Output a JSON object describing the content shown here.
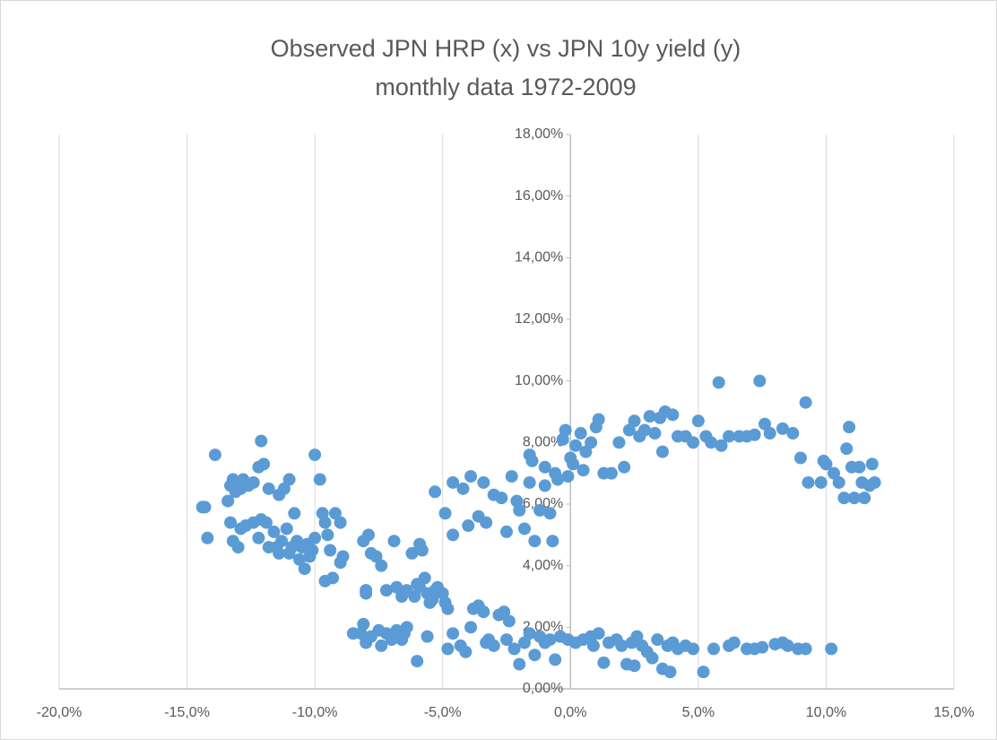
{
  "chart_data": {
    "type": "scatter",
    "title": "Observed JPN HRP (x) vs JPN 10y yield (y)",
    "subtitle": "monthly data 1972-2009",
    "color": "#5b9bd5",
    "grid": true,
    "xlim": [
      -20,
      15
    ],
    "ylim": [
      0,
      18
    ],
    "xticks": [
      {
        "value": -20,
        "label": "-20,0%"
      },
      {
        "value": -15,
        "label": "-15,0%"
      },
      {
        "value": -10,
        "label": "-10,0%"
      },
      {
        "value": -5,
        "label": "-5,0%"
      },
      {
        "value": 0,
        "label": "0,0%"
      },
      {
        "value": 5,
        "label": "5,0%"
      },
      {
        "value": 10,
        "label": "10,0%"
      },
      {
        "value": 15,
        "label": "15,0%"
      }
    ],
    "yticks": [
      {
        "value": 0,
        "label": "0,00%"
      },
      {
        "value": 2,
        "label": "2,00%"
      },
      {
        "value": 4,
        "label": "4,00%"
      },
      {
        "value": 6,
        "label": "6,00%"
      },
      {
        "value": 8,
        "label": "8,00%"
      },
      {
        "value": 10,
        "label": "10,00%"
      },
      {
        "value": 12,
        "label": "12,00%"
      },
      {
        "value": 14,
        "label": "14,00%"
      },
      {
        "value": 16,
        "label": "16,00%"
      },
      {
        "value": 18,
        "label": "18,00%"
      }
    ],
    "x": [
      -14.4,
      -14.3,
      -14.2,
      -13.9,
      -13.4,
      -13.3,
      -13.2,
      -13.1,
      -13.0,
      -12.9,
      -12.8,
      -12.6,
      -12.4,
      -12.2,
      -12.1,
      -12.0,
      -11.8,
      -11.4,
      -11.2,
      -11.0,
      -13.3,
      -13.2,
      -13.0,
      -12.9,
      -12.7,
      -12.4,
      -12.2,
      -12.1,
      -11.9,
      -11.8,
      -11.6,
      -11.4,
      -11.3,
      -11.1,
      -11.0,
      -10.9,
      -10.8,
      -10.6,
      -10.5,
      -10.4,
      -10.3,
      -10.2,
      -10.0,
      -10.0,
      -9.8,
      -9.7,
      -9.6,
      -9.5,
      -9.4,
      -9.3,
      -9.6,
      -9.2,
      -9.0,
      -9.0,
      -8.9,
      -10.7,
      -11.5,
      -10.1,
      -8.1,
      -7.9,
      -7.8,
      -7.6,
      -7.4,
      -8.0,
      -8.0,
      -7.2,
      -6.9,
      -6.8,
      -6.6,
      -6.4,
      -6.2,
      -6.0,
      -5.9,
      -5.8,
      -5.7,
      -5.6,
      -5.4,
      -5.3,
      -5.2,
      -5.0,
      -4.9,
      -4.8,
      -5.5,
      -6.1,
      -5.9,
      -8.5,
      -8.2,
      -8.1,
      -8.0,
      -7.8,
      -7.5,
      -7.4,
      -7.2,
      -7.0,
      -6.8,
      -6.6,
      -6.4,
      -6.5,
      -6.0,
      -5.6,
      -4.8,
      -4.6,
      -4.3,
      -4.1,
      -3.9,
      -3.8,
      -3.6,
      -3.4,
      -3.2,
      -3.0,
      -2.8,
      -2.6,
      -2.4,
      -2.2,
      -2.0,
      -1.8,
      -1.6,
      -1.4,
      -1.2,
      -1.0,
      -0.8,
      -0.6,
      -0.4,
      -0.1,
      0.2,
      0.5,
      0.8,
      1.1,
      1.3,
      1.5,
      1.8,
      2.0,
      2.2,
      2.5,
      2.6,
      2.8,
      3.0,
      3.2,
      3.4,
      3.6,
      3.8,
      3.9,
      4.2,
      4.5,
      4.8,
      5.2,
      5.6,
      6.2,
      6.4,
      6.9,
      7.2,
      7.5,
      8.0,
      8.3,
      8.5,
      8.9,
      9.2,
      10.2,
      -3.3,
      -2.5,
      0.9,
      2.4,
      4.0,
      -5.3,
      -4.9,
      -4.6,
      -4.6,
      -4.2,
      -3.9,
      -4.0,
      -3.6,
      -3.4,
      -3.3,
      -3.0,
      -2.7,
      -2.5,
      -2.3,
      -2.1,
      -2.0,
      -1.8,
      -1.6,
      -1.4,
      -1.2,
      -1.0,
      -0.8,
      -0.7,
      -0.5,
      -1.6,
      -1.5,
      -1.0,
      -0.6,
      -0.3,
      -0.2,
      0.0,
      0.2,
      0.4,
      0.6,
      0.8,
      1.0,
      1.1,
      1.3,
      1.6,
      1.9,
      2.1,
      2.3,
      2.5,
      2.7,
      2.9,
      3.1,
      3.3,
      3.5,
      3.6,
      3.7,
      4.0,
      4.2,
      4.5,
      4.8,
      5.0,
      5.3,
      5.5,
      5.8,
      5.9,
      6.2,
      6.6,
      6.9,
      7.2,
      7.4,
      7.6,
      7.8,
      8.3,
      8.7,
      9.2,
      0.5,
      0.1,
      -0.1,
      9.0,
      9.3,
      9.8,
      9.9,
      10.0,
      10.3,
      10.5,
      10.7,
      10.8,
      10.9,
      11.0,
      11.1,
      11.3,
      11.4,
      11.5,
      11.7,
      11.8,
      11.9
    ],
    "values": [
      5.9,
      5.9,
      4.9,
      7.6,
      6.1,
      6.6,
      6.8,
      6.4,
      6.7,
      6.5,
      6.8,
      6.6,
      6.7,
      7.2,
      8.05,
      7.3,
      6.5,
      6.3,
      6.5,
      6.8,
      5.4,
      4.8,
      4.6,
      5.2,
      5.3,
      5.4,
      4.9,
      5.5,
      5.4,
      4.6,
      5.1,
      4.4,
      4.8,
      5.2,
      4.4,
      4.6,
      5.7,
      4.2,
      4.6,
      3.9,
      4.7,
      4.3,
      4.9,
      7.6,
      6.8,
      5.7,
      5.4,
      5.0,
      4.5,
      3.6,
      3.5,
      5.7,
      5.4,
      4.1,
      4.3,
      4.8,
      4.6,
      4.5,
      4.8,
      5.0,
      4.4,
      4.3,
      4.0,
      3.2,
      3.1,
      3.2,
      4.8,
      3.3,
      3.0,
      3.2,
      4.4,
      3.4,
      4.7,
      4.5,
      3.6,
      3.1,
      2.9,
      3.2,
      3.3,
      3.1,
      2.8,
      2.6,
      2.8,
      3.0,
      3.3,
      1.8,
      1.8,
      2.1,
      1.5,
      1.7,
      1.9,
      1.4,
      1.8,
      1.6,
      1.9,
      1.6,
      2.0,
      1.8,
      0.9,
      1.7,
      1.3,
      1.8,
      1.4,
      1.2,
      2.0,
      2.6,
      2.7,
      2.5,
      1.6,
      1.4,
      2.4,
      2.5,
      2.2,
      1.3,
      0.8,
      1.5,
      1.8,
      1.1,
      1.7,
      1.5,
      1.6,
      0.95,
      1.7,
      1.6,
      1.5,
      1.6,
      1.7,
      1.8,
      0.85,
      1.5,
      1.6,
      1.4,
      0.8,
      0.75,
      1.7,
      1.4,
      1.2,
      1.0,
      1.6,
      0.65,
      1.4,
      0.55,
      1.3,
      1.4,
      1.3,
      0.55,
      1.3,
      1.4,
      1.5,
      1.3,
      1.3,
      1.35,
      1.45,
      1.5,
      1.4,
      1.3,
      1.3,
      1.3,
      1.5,
      1.6,
      1.4,
      1.5,
      1.5,
      6.4,
      5.7,
      6.7,
      5.0,
      6.5,
      6.9,
      5.3,
      5.6,
      6.7,
      5.4,
      6.3,
      6.2,
      5.1,
      6.9,
      6.1,
      5.8,
      5.2,
      6.7,
      4.8,
      5.8,
      6.6,
      5.7,
      4.8,
      6.8,
      7.6,
      7.4,
      7.2,
      7.0,
      8.1,
      8.4,
      7.5,
      7.9,
      8.3,
      7.7,
      8.0,
      8.5,
      8.75,
      7.0,
      7.0,
      8.0,
      7.2,
      8.4,
      8.7,
      8.2,
      8.4,
      8.85,
      8.3,
      8.8,
      7.7,
      9.0,
      8.9,
      8.2,
      8.2,
      8.0,
      8.7,
      8.2,
      8.0,
      9.95,
      7.9,
      8.2,
      8.2,
      8.2,
      8.25,
      10.0,
      8.6,
      8.3,
      8.45,
      8.3,
      9.3,
      7.1,
      7.3,
      6.9,
      7.5,
      6.7,
      6.7,
      7.4,
      7.3,
      7.0,
      6.7,
      6.2,
      7.8,
      8.5,
      7.2,
      6.2,
      7.2,
      6.7,
      6.2,
      6.6,
      7.3,
      6.7
    ]
  }
}
